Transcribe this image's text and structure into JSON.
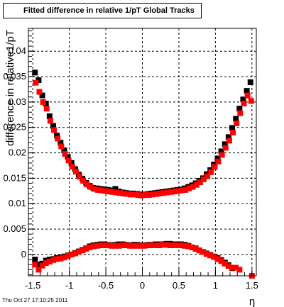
{
  "canvas_title": "Fitted difference in relative 1/pT  Global Tracks",
  "timestamp": "Thu Oct 27 17:10:25 2011",
  "chart_data": {
    "type": "scatter",
    "title": "Fitted difference in relative 1/pT  Global Tracks",
    "xlabel": "η",
    "ylabel": "difference in relative1/pT",
    "xlim": [
      -1.56,
      1.56
    ],
    "ylim": [
      -0.0042,
      0.0445
    ],
    "x_ticks": [
      -1.5,
      -1,
      -0.5,
      0,
      0.5,
      1,
      1.5
    ],
    "x_tick_labels": [
      "-1.5",
      "-1",
      "-0.5",
      "0",
      "0.5",
      "1",
      "1.5"
    ],
    "y_ticks": [
      0,
      0.005,
      0.01,
      0.015,
      0.02,
      0.025,
      0.03,
      0.035,
      0.04
    ],
    "y_tick_labels": [
      "0",
      "0.005",
      "0.01",
      "0.015",
      "0.02",
      "0.025",
      "0.03",
      "0.035",
      "0.04"
    ],
    "grid": true,
    "series": [
      {
        "color": "#000000",
        "marker": "square",
        "points": [
          [
            -1.47,
            0.0358
          ],
          [
            -1.42,
            0.0343
          ],
          [
            -1.37,
            0.0313
          ],
          [
            -1.32,
            0.0297
          ],
          [
            -1.27,
            0.0272
          ],
          [
            -1.22,
            0.0253
          ],
          [
            -1.17,
            0.0234
          ],
          [
            -1.12,
            0.022
          ],
          [
            -1.07,
            0.0205
          ],
          [
            -1.02,
            0.0192
          ],
          [
            -0.97,
            0.018
          ],
          [
            -0.92,
            0.0168
          ],
          [
            -0.87,
            0.0157
          ],
          [
            -0.82,
            0.0149
          ],
          [
            -0.77,
            0.0141
          ],
          [
            -0.72,
            0.0135
          ],
          [
            -0.67,
            0.0131
          ],
          [
            -0.62,
            0.013
          ],
          [
            -0.57,
            0.0129
          ],
          [
            -0.52,
            0.0128
          ],
          [
            -0.47,
            0.0127
          ],
          [
            -0.42,
            0.0126
          ],
          [
            -0.37,
            0.0129
          ],
          [
            -0.32,
            0.0124
          ],
          [
            -0.27,
            0.0122
          ],
          [
            -0.22,
            0.0121
          ],
          [
            -0.17,
            0.012
          ],
          [
            -0.12,
            0.012
          ],
          [
            -0.07,
            0.0119
          ],
          [
            -0.02,
            0.0118
          ],
          [
            0.03,
            0.0118
          ],
          [
            0.08,
            0.0119
          ],
          [
            0.13,
            0.012
          ],
          [
            0.18,
            0.0121
          ],
          [
            0.23,
            0.0122
          ],
          [
            0.28,
            0.0123
          ],
          [
            0.33,
            0.0124
          ],
          [
            0.38,
            0.0125
          ],
          [
            0.43,
            0.0126
          ],
          [
            0.48,
            0.0127
          ],
          [
            0.53,
            0.0128
          ],
          [
            0.58,
            0.013
          ],
          [
            0.63,
            0.0133
          ],
          [
            0.68,
            0.0136
          ],
          [
            0.73,
            0.014
          ],
          [
            0.78,
            0.0145
          ],
          [
            0.83,
            0.015
          ],
          [
            0.88,
            0.0158
          ],
          [
            0.93,
            0.0166
          ],
          [
            0.98,
            0.0177
          ],
          [
            1.03,
            0.0189
          ],
          [
            1.08,
            0.0203
          ],
          [
            1.13,
            0.0217
          ],
          [
            1.18,
            0.0231
          ],
          [
            1.23,
            0.0249
          ],
          [
            1.28,
            0.0267
          ],
          [
            1.33,
            0.0287
          ],
          [
            1.38,
            0.0305
          ],
          [
            1.43,
            0.0322
          ],
          [
            1.48,
            0.0339
          ],
          [
            -1.47,
            -0.001
          ],
          [
            -1.42,
            -0.002
          ],
          [
            -1.37,
            -0.0018
          ],
          [
            -1.32,
            -0.0012
          ],
          [
            -1.27,
            -0.001
          ],
          [
            -1.22,
            -0.0009
          ],
          [
            -1.17,
            -0.0007
          ],
          [
            -1.12,
            -0.0006
          ],
          [
            -1.07,
            -0.0004
          ],
          [
            -1.02,
            -0.0002
          ],
          [
            -0.97,
            0.0
          ],
          [
            -0.92,
            0.0003
          ],
          [
            -0.87,
            0.0006
          ],
          [
            -0.82,
            0.0009
          ],
          [
            -0.77,
            0.0012
          ],
          [
            -0.72,
            0.0016
          ],
          [
            -0.67,
            0.0018
          ],
          [
            -0.62,
            0.0019
          ],
          [
            -0.57,
            0.002
          ],
          [
            -0.52,
            0.002
          ],
          [
            -0.47,
            0.0019
          ],
          [
            -0.42,
            0.0018
          ],
          [
            -0.37,
            0.0019
          ],
          [
            -0.32,
            0.002
          ],
          [
            -0.27,
            0.002
          ],
          [
            -0.22,
            0.0019
          ],
          [
            -0.17,
            0.0018
          ],
          [
            -0.12,
            0.0019
          ],
          [
            -0.07,
            0.0019
          ],
          [
            -0.02,
            0.0018
          ],
          [
            0.03,
            0.0018
          ],
          [
            0.08,
            0.0019
          ],
          [
            0.13,
            0.0019
          ],
          [
            0.18,
            0.002
          ],
          [
            0.23,
            0.002
          ],
          [
            0.28,
            0.002
          ],
          [
            0.33,
            0.0021
          ],
          [
            0.38,
            0.0021
          ],
          [
            0.43,
            0.002
          ],
          [
            0.48,
            0.002
          ],
          [
            0.53,
            0.002
          ],
          [
            0.58,
            0.0019
          ],
          [
            0.63,
            0.0017
          ],
          [
            0.68,
            0.0014
          ],
          [
            0.73,
            0.0012
          ],
          [
            0.78,
            0.0008
          ],
          [
            0.83,
            0.0005
          ],
          [
            0.88,
            0.0002
          ],
          [
            0.93,
            -0.0001
          ],
          [
            0.98,
            -0.0004
          ],
          [
            1.03,
            -0.0007
          ],
          [
            1.08,
            -0.0011
          ],
          [
            1.13,
            -0.0016
          ],
          [
            1.18,
            -0.0021
          ],
          [
            1.23,
            -0.0027
          ]
        ]
      },
      {
        "color": "#ff0000",
        "marker": "square",
        "points": [
          [
            -1.46,
            0.0338
          ],
          [
            -1.41,
            0.032
          ],
          [
            -1.36,
            0.03
          ],
          [
            -1.31,
            0.0287
          ],
          [
            -1.26,
            0.0263
          ],
          [
            -1.21,
            0.0245
          ],
          [
            -1.16,
            0.0228
          ],
          [
            -1.11,
            0.0213
          ],
          [
            -1.06,
            0.0198
          ],
          [
            -1.01,
            0.0185
          ],
          [
            -0.96,
            0.0173
          ],
          [
            -0.91,
            0.0163
          ],
          [
            -0.86,
            0.0153
          ],
          [
            -0.81,
            0.0145
          ],
          [
            -0.76,
            0.0138
          ],
          [
            -0.71,
            0.0133
          ],
          [
            -0.66,
            0.0129
          ],
          [
            -0.61,
            0.0127
          ],
          [
            -0.56,
            0.0126
          ],
          [
            -0.51,
            0.0125
          ],
          [
            -0.46,
            0.0124
          ],
          [
            -0.41,
            0.0123
          ],
          [
            -0.36,
            0.0122
          ],
          [
            -0.31,
            0.0121
          ],
          [
            -0.26,
            0.012
          ],
          [
            -0.21,
            0.0119
          ],
          [
            -0.16,
            0.0118
          ],
          [
            -0.11,
            0.0118
          ],
          [
            -0.06,
            0.0117
          ],
          [
            -0.01,
            0.0116
          ],
          [
            0.04,
            0.0117
          ],
          [
            0.09,
            0.0117
          ],
          [
            0.14,
            0.0118
          ],
          [
            0.19,
            0.0119
          ],
          [
            0.24,
            0.012
          ],
          [
            0.29,
            0.0121
          ],
          [
            0.34,
            0.0122
          ],
          [
            0.39,
            0.0123
          ],
          [
            0.44,
            0.0124
          ],
          [
            0.49,
            0.0125
          ],
          [
            0.54,
            0.0126
          ],
          [
            0.59,
            0.0127
          ],
          [
            0.64,
            0.013
          ],
          [
            0.69,
            0.0133
          ],
          [
            0.74,
            0.0137
          ],
          [
            0.79,
            0.0142
          ],
          [
            0.84,
            0.0148
          ],
          [
            0.89,
            0.0154
          ],
          [
            0.94,
            0.0162
          ],
          [
            0.99,
            0.0172
          ],
          [
            1.04,
            0.0183
          ],
          [
            1.09,
            0.0196
          ],
          [
            1.14,
            0.021
          ],
          [
            1.19,
            0.0224
          ],
          [
            1.24,
            0.024
          ],
          [
            1.29,
            0.0258
          ],
          [
            1.34,
            0.0278
          ],
          [
            1.39,
            0.0297
          ],
          [
            1.44,
            0.0313
          ],
          [
            1.49,
            0.0302
          ],
          [
            -1.47,
            -0.002
          ],
          [
            -1.42,
            -0.003
          ],
          [
            -1.37,
            -0.0022
          ],
          [
            -1.32,
            -0.0017
          ],
          [
            -1.27,
            -0.0014
          ],
          [
            -1.22,
            -0.0011
          ],
          [
            -1.17,
            -0.0009
          ],
          [
            -1.12,
            -0.0008
          ],
          [
            -1.07,
            -0.0006
          ],
          [
            -1.02,
            -0.0003
          ],
          [
            -0.97,
            0.0
          ],
          [
            -0.92,
            0.0002
          ],
          [
            -0.87,
            0.0005
          ],
          [
            -0.82,
            0.0008
          ],
          [
            -0.77,
            0.0011
          ],
          [
            -0.72,
            0.0014
          ],
          [
            -0.67,
            0.0016
          ],
          [
            -0.62,
            0.0017
          ],
          [
            -0.57,
            0.0018
          ],
          [
            -0.52,
            0.0018
          ],
          [
            -0.47,
            0.0018
          ],
          [
            -0.42,
            0.0017
          ],
          [
            -0.37,
            0.0017
          ],
          [
            -0.32,
            0.0017
          ],
          [
            -0.27,
            0.0018
          ],
          [
            -0.22,
            0.0018
          ],
          [
            -0.17,
            0.0017
          ],
          [
            -0.12,
            0.0017
          ],
          [
            -0.07,
            0.0017
          ],
          [
            -0.02,
            0.0017
          ],
          [
            0.03,
            0.0017
          ],
          [
            0.08,
            0.0018
          ],
          [
            0.13,
            0.0018
          ],
          [
            0.18,
            0.0018
          ],
          [
            0.23,
            0.0018
          ],
          [
            0.28,
            0.0019
          ],
          [
            0.33,
            0.0019
          ],
          [
            0.38,
            0.0018
          ],
          [
            0.43,
            0.0018
          ],
          [
            0.48,
            0.0018
          ],
          [
            0.53,
            0.0018
          ],
          [
            0.58,
            0.0017
          ],
          [
            0.63,
            0.0016
          ],
          [
            0.68,
            0.0014
          ],
          [
            0.73,
            0.0011
          ],
          [
            0.78,
            0.0008
          ],
          [
            0.83,
            0.0005
          ],
          [
            0.88,
            0.0001
          ],
          [
            0.93,
            -0.0002
          ],
          [
            0.98,
            -0.0005
          ],
          [
            1.03,
            -0.0009
          ],
          [
            1.08,
            -0.0013
          ],
          [
            1.13,
            -0.0018
          ],
          [
            1.18,
            -0.0023
          ],
          [
            1.23,
            -0.0026
          ],
          [
            1.28,
            -0.0026
          ],
          [
            1.33,
            -0.003
          ],
          [
            1.5,
            -0.0042
          ]
        ]
      }
    ]
  }
}
